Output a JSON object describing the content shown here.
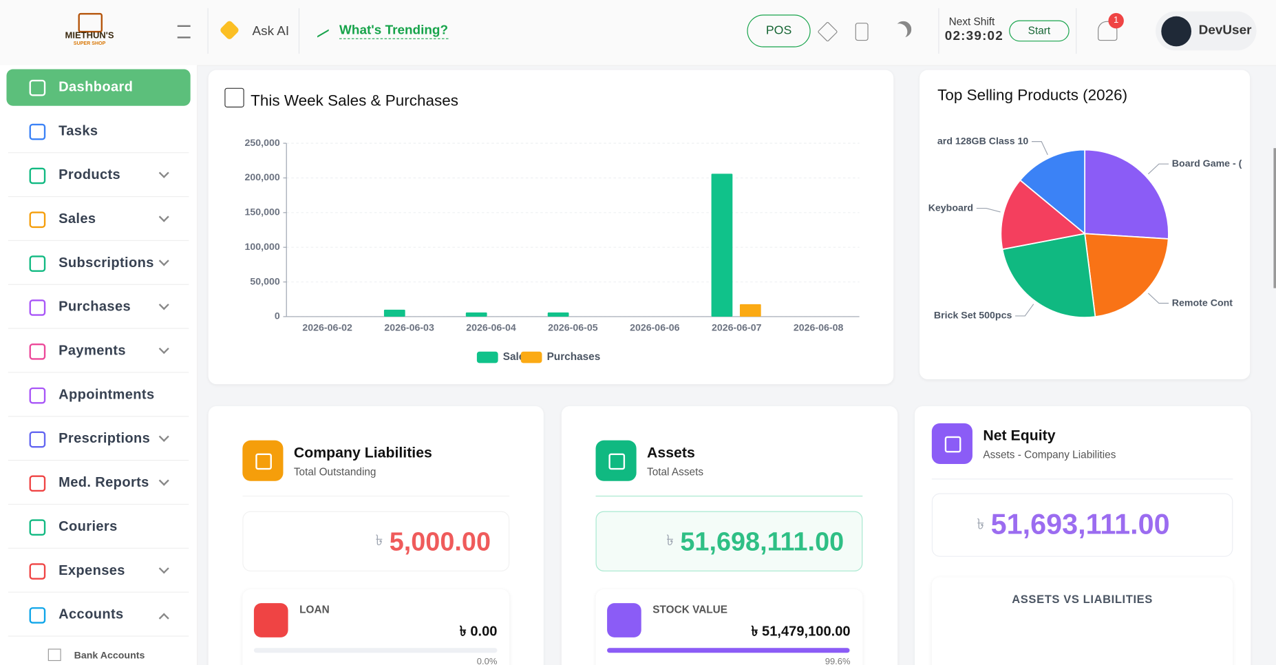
{
  "header": {
    "brand": "MIETHUN'S",
    "brand_sub": "SUPER SHOP",
    "ask_ai": "Ask AI",
    "trending": "What's Trending?",
    "pos": "POS",
    "shift_label": "Next Shift",
    "shift_time": "02:39:02",
    "start": "Start",
    "notifications": "1",
    "user": "DevUser"
  },
  "sidebar": {
    "items": [
      {
        "label": "Dashboard",
        "color": "#ffffff",
        "active": true
      },
      {
        "label": "Tasks",
        "color": "#3b82f6"
      },
      {
        "label": "Products",
        "color": "#10b981",
        "chevron": "down"
      },
      {
        "label": "Sales",
        "color": "#f59e0b",
        "chevron": "down"
      },
      {
        "label": "Subscriptions",
        "color": "#10b981",
        "chevron": "down"
      },
      {
        "label": "Purchases",
        "color": "#a855f7",
        "chevron": "down"
      },
      {
        "label": "Payments",
        "color": "#ec4899",
        "chevron": "down"
      },
      {
        "label": "Appointments",
        "color": "#a855f7"
      },
      {
        "label": "Prescriptions",
        "color": "#6366f1",
        "chevron": "down"
      },
      {
        "label": "Med. Reports",
        "color": "#ef4444",
        "chevron": "down"
      },
      {
        "label": "Couriers",
        "color": "#10b981"
      },
      {
        "label": "Expenses",
        "color": "#ef4444",
        "chevron": "down"
      },
      {
        "label": "Accounts",
        "color": "#0ea5e9",
        "chevron": "up"
      }
    ],
    "subitems": [
      "Bank Accounts"
    ]
  },
  "chart_data": [
    {
      "type": "bar",
      "title": "This Week Sales & Purchases",
      "categories": [
        "2026-06-02",
        "2026-06-03",
        "2026-06-04",
        "2026-06-05",
        "2026-06-06",
        "2026-06-07",
        "2026-06-08"
      ],
      "series": [
        {
          "name": "Sales",
          "color": "#10c28a",
          "values": [
            0,
            10000,
            6000,
            6000,
            0,
            206000,
            0
          ]
        },
        {
          "name": "Purchases",
          "color": "#fbaa14",
          "values": [
            0,
            0,
            0,
            0,
            0,
            18000,
            0
          ]
        }
      ],
      "ylim": [
        0,
        250000
      ],
      "yticks": [
        0,
        {
          "value": 50000,
          "label": "50,000"
        },
        {
          "value": 100000,
          "label": "100,000"
        },
        {
          "value": 150000,
          "label": "150,000"
        },
        {
          "value": 200000,
          "label": "200,000"
        },
        {
          "value": 250000,
          "label": "250,000"
        }
      ],
      "grid": true,
      "legend": "bottom"
    },
    {
      "type": "pie",
      "title": "Top Selling Products (2026)",
      "categories": [
        "Board Game - (",
        "Remote Cont",
        "Brick Set 500pcs",
        "Keyboard",
        "ard 128GB Class 10"
      ],
      "values": [
        26,
        22,
        24,
        14,
        14
      ],
      "colors": [
        "#8b5cf6",
        "#f97316",
        "#10b981",
        "#f43f5e",
        "#3b82f6"
      ]
    }
  ],
  "cards": {
    "currency": "৳",
    "liabilities": {
      "title": "Company Liabilities",
      "subtitle": "Total Outstanding",
      "value": "5,000.00",
      "item": "LOAN",
      "item_value": "৳ 0.00",
      "progress": {
        "value": 0,
        "label": "0.0%"
      }
    },
    "assets": {
      "title": "Assets",
      "subtitle": "Total Assets",
      "value": "51,698,111.00",
      "item": "STOCK VALUE",
      "item_value": "৳ 51,479,100.00",
      "progress": {
        "value": 99.6,
        "label": "99.6%"
      }
    },
    "equity": {
      "title": "Net Equity",
      "subtitle": "Assets - Company Liabilities",
      "value": "51,693,111.00",
      "section": "ASSETS VS LIABILITIES"
    }
  }
}
